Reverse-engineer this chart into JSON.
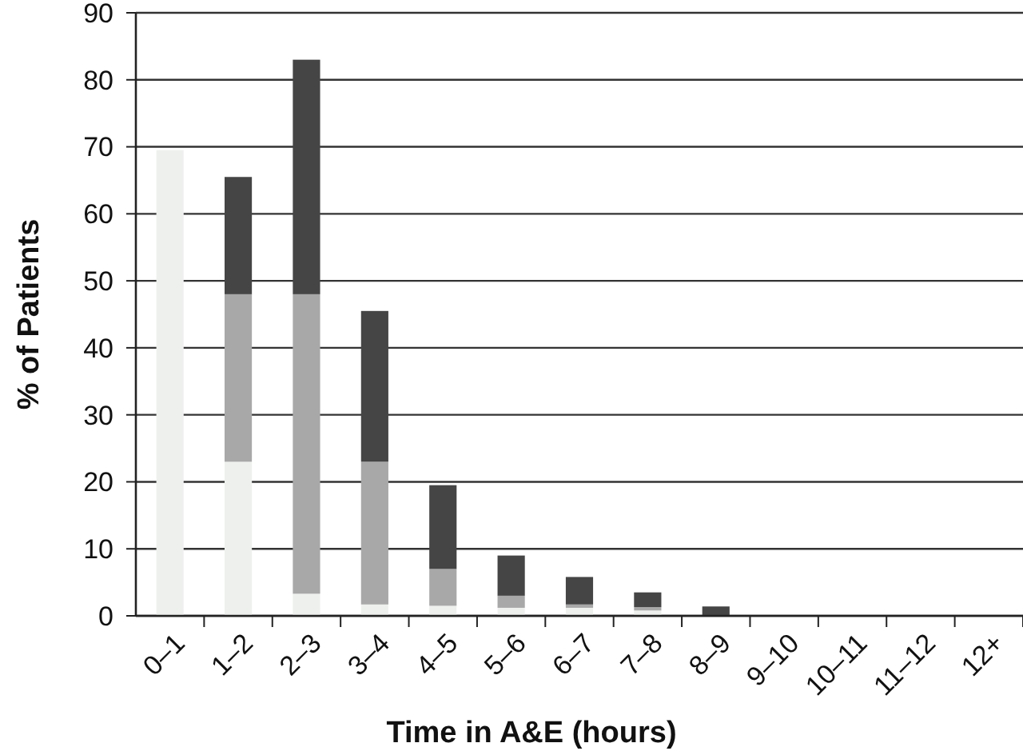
{
  "chart_data": {
    "type": "bar",
    "stacked": true,
    "xlabel": "Time in A&E (hours)",
    "ylabel": "% of Patients",
    "categories": [
      "0–1",
      "1–2",
      "2–3",
      "3–4",
      "4–5",
      "5–6",
      "6–7",
      "7–8",
      "8–9",
      "9–10",
      "10–11",
      "11–12",
      "12+"
    ],
    "series": [
      {
        "color": "#eef0ee",
        "values": [
          69.5,
          23,
          3.3,
          1.7,
          1.5,
          1.2,
          1.2,
          0.8,
          null,
          0,
          0,
          0,
          0
        ]
      },
      {
        "color": "#a8a8a8",
        "values": [
          0,
          25,
          44.7,
          21.3,
          5.5,
          1.8,
          0.5,
          0.5,
          null,
          0,
          0,
          0,
          0
        ]
      },
      {
        "color": "#454545",
        "values": [
          0,
          17.5,
          35,
          22.5,
          12.5,
          6,
          4.1,
          2.2,
          1.4,
          0,
          0,
          0,
          0
        ]
      }
    ],
    "ylim": [
      0,
      90
    ],
    "yticks": [
      0,
      10,
      20,
      30,
      40,
      50,
      60,
      70,
      80,
      90
    ],
    "grid": "y"
  }
}
